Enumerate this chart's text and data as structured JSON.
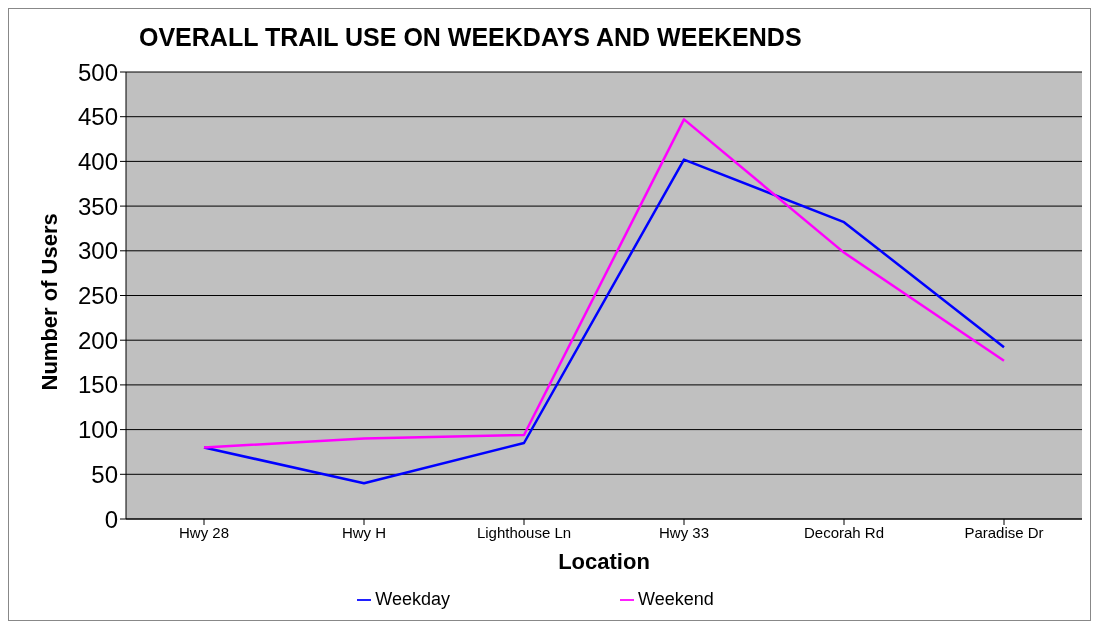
{
  "chart_data": {
    "type": "line",
    "title": "OVERALL TRAIL USE ON WEEKDAYS AND WEEKENDS",
    "xlabel": "Location",
    "ylabel": "Number of Users",
    "categories": [
      "Hwy 28",
      "Hwy H",
      "Lighthouse Ln",
      "Hwy 33",
      "Decorah Rd",
      "Paradise  Dr"
    ],
    "series": [
      {
        "name": "Weekday",
        "color": "#0000ff",
        "values": [
          80,
          40,
          85,
          402,
          332,
          192
        ]
      },
      {
        "name": "Weekend",
        "color": "#ff00ff",
        "values": [
          80,
          90,
          94,
          447,
          298,
          177
        ]
      }
    ],
    "ylim": [
      0,
      500
    ],
    "yticks": [
      0,
      50,
      100,
      150,
      200,
      250,
      300,
      350,
      400,
      450,
      500
    ],
    "grid": "y",
    "legend": "bottom",
    "marker": "none",
    "line_style": "solid"
  }
}
